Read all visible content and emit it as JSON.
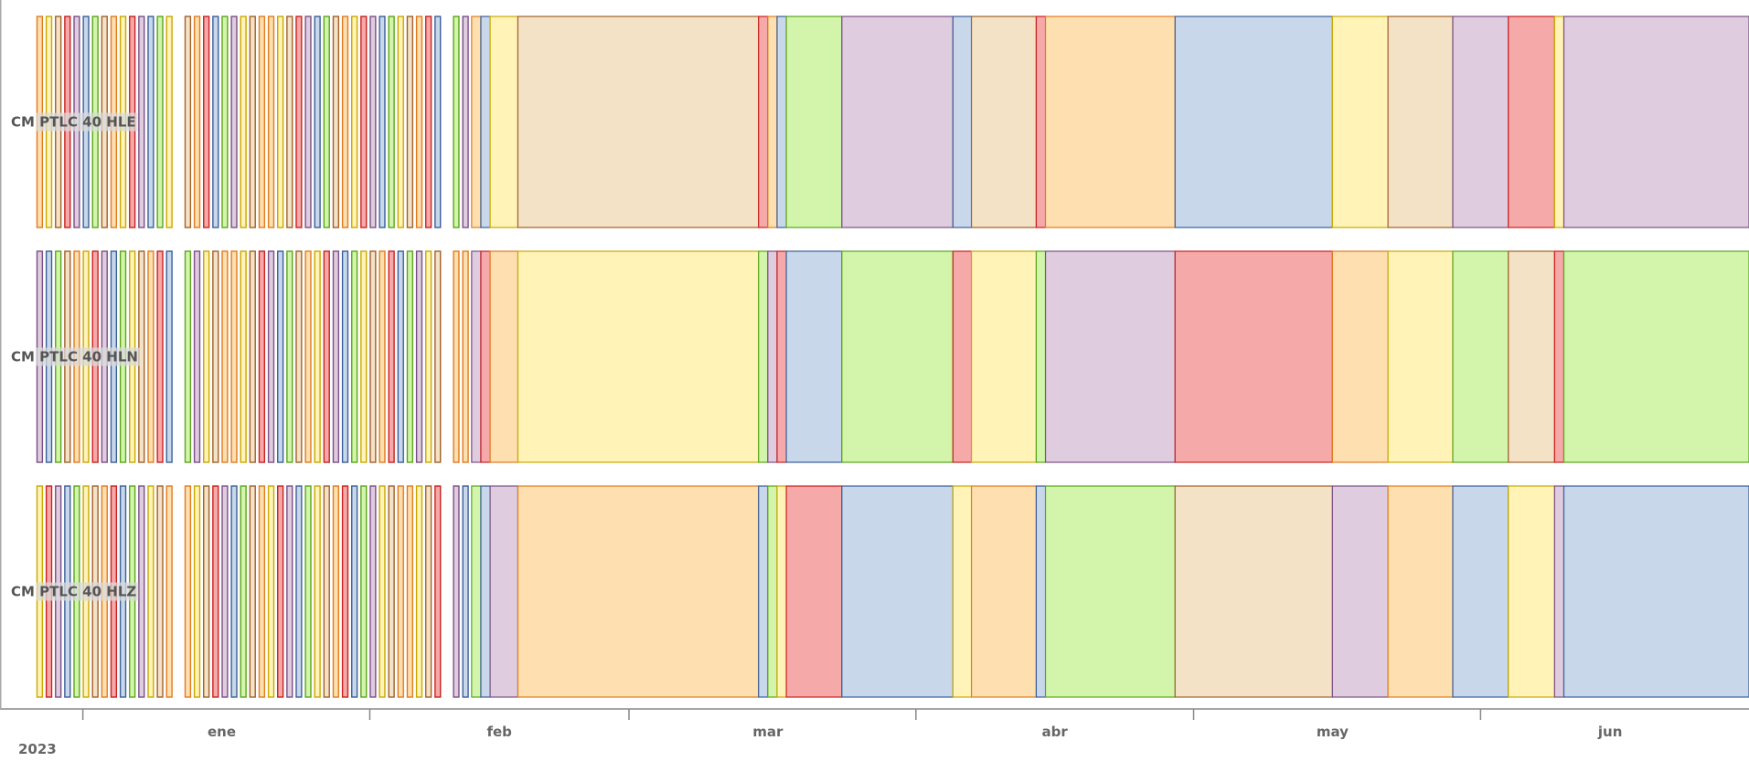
{
  "chart_data": {
    "type": "timeline",
    "title": "",
    "xlabel": "",
    "ylabel": "",
    "x_axis": {
      "type": "date",
      "range": [
        "2022-12-27",
        "2023-06-30"
      ],
      "tick_dates": [
        "2023-01-01",
        "2023-02-01",
        "2023-03-01",
        "2023-04-01",
        "2023-05-01",
        "2023-06-01",
        "2023-07-01"
      ],
      "month_labels": [
        {
          "label": "ene",
          "date": "2023-01-16"
        },
        {
          "label": "feb",
          "date": "2023-02-15"
        },
        {
          "label": "mar",
          "date": "2023-03-16"
        },
        {
          "label": "abr",
          "date": "2023-04-16"
        },
        {
          "label": "may",
          "date": "2023-05-16"
        },
        {
          "label": "jun",
          "date": "2023-06-15"
        }
      ],
      "year_label": "2023"
    },
    "grid": false,
    "legend": "none",
    "palette": {
      "orange": {
        "fill": "#fddfb0",
        "stroke": "#e07b1f"
      },
      "blue": {
        "fill": "#c8d8ea",
        "stroke": "#3a5f9a"
      },
      "yellow": {
        "fill": "#fff3b8",
        "stroke": "#c9a800"
      },
      "purple": {
        "fill": "#dfcddf",
        "stroke": "#7a4f85"
      },
      "red": {
        "fill": "#f6a9a9",
        "stroke": "#cc2020"
      },
      "green": {
        "fill": "#d3f5ab",
        "stroke": "#5aa51c"
      },
      "tan": {
        "fill": "#f4e2c6",
        "stroke": "#a0612b"
      }
    },
    "early_pattern": [
      "orange",
      "yellow",
      "tan",
      "red",
      "purple",
      "blue",
      "green",
      "tan",
      "orange",
      "yellow",
      "red",
      "purple",
      "blue",
      "green",
      "yellow",
      "tan",
      "orange",
      "red",
      "blue",
      "green",
      "purple",
      "yellow",
      "tan",
      "orange"
    ],
    "early_groups": [
      {
        "start": "2022-12-27",
        "end": "2023-01-10"
      },
      {
        "start": "2023-01-12",
        "end": "2023-01-22"
      },
      {
        "start": "2023-01-23",
        "end": "2023-02-08"
      },
      {
        "start": "2023-02-10",
        "end": "2023-02-11"
      }
    ],
    "series": [
      {
        "name": "CM PTLC 40 HLE",
        "early_offset": 0,
        "segments": [
          {
            "start": "2023-02-12",
            "end": "2023-02-13",
            "color": "orange"
          },
          {
            "start": "2023-02-13",
            "end": "2023-02-14",
            "color": "blue"
          },
          {
            "start": "2023-02-14",
            "end": "2023-02-17",
            "color": "yellow"
          },
          {
            "start": "2023-02-17",
            "end": "2023-03-15",
            "color": "tan"
          },
          {
            "start": "2023-03-15",
            "end": "2023-03-16",
            "color": "red"
          },
          {
            "start": "2023-03-16",
            "end": "2023-03-17",
            "color": "orange"
          },
          {
            "start": "2023-03-17",
            "end": "2023-03-18",
            "color": "blue"
          },
          {
            "start": "2023-03-18",
            "end": "2023-03-24",
            "color": "green"
          },
          {
            "start": "2023-03-24",
            "end": "2023-04-05",
            "color": "purple"
          },
          {
            "start": "2023-04-05",
            "end": "2023-04-07",
            "color": "blue"
          },
          {
            "start": "2023-04-07",
            "end": "2023-04-14",
            "color": "tan"
          },
          {
            "start": "2023-04-14",
            "end": "2023-04-15",
            "color": "red"
          },
          {
            "start": "2023-04-15",
            "end": "2023-04-29",
            "color": "orange"
          },
          {
            "start": "2023-04-29",
            "end": "2023-05-16",
            "color": "blue"
          },
          {
            "start": "2023-05-16",
            "end": "2023-05-22",
            "color": "yellow"
          },
          {
            "start": "2023-05-22",
            "end": "2023-05-29",
            "color": "tan"
          },
          {
            "start": "2023-05-29",
            "end": "2023-06-04",
            "color": "purple"
          },
          {
            "start": "2023-06-04",
            "end": "2023-06-09",
            "color": "red"
          },
          {
            "start": "2023-06-09",
            "end": "2023-06-10",
            "color": "yellow"
          },
          {
            "start": "2023-06-10",
            "end": "2023-06-30",
            "color": "purple"
          }
        ]
      },
      {
        "name": "CM PTLC 40 HLN",
        "early_offset": 4,
        "segments": [
          {
            "start": "2023-02-12",
            "end": "2023-02-13",
            "color": "purple"
          },
          {
            "start": "2023-02-13",
            "end": "2023-02-14",
            "color": "red"
          },
          {
            "start": "2023-02-14",
            "end": "2023-02-17",
            "color": "orange"
          },
          {
            "start": "2023-02-17",
            "end": "2023-03-15",
            "color": "yellow"
          },
          {
            "start": "2023-03-15",
            "end": "2023-03-16",
            "color": "green"
          },
          {
            "start": "2023-03-16",
            "end": "2023-03-17",
            "color": "purple"
          },
          {
            "start": "2023-03-17",
            "end": "2023-03-18",
            "color": "red"
          },
          {
            "start": "2023-03-18",
            "end": "2023-03-24",
            "color": "blue"
          },
          {
            "start": "2023-03-24",
            "end": "2023-04-05",
            "color": "green"
          },
          {
            "start": "2023-04-05",
            "end": "2023-04-07",
            "color": "red"
          },
          {
            "start": "2023-04-07",
            "end": "2023-04-14",
            "color": "yellow"
          },
          {
            "start": "2023-04-14",
            "end": "2023-04-15",
            "color": "green"
          },
          {
            "start": "2023-04-15",
            "end": "2023-04-29",
            "color": "purple"
          },
          {
            "start": "2023-04-29",
            "end": "2023-05-16",
            "color": "red"
          },
          {
            "start": "2023-05-16",
            "end": "2023-05-22",
            "color": "orange"
          },
          {
            "start": "2023-05-22",
            "end": "2023-05-29",
            "color": "yellow"
          },
          {
            "start": "2023-05-29",
            "end": "2023-06-04",
            "color": "green"
          },
          {
            "start": "2023-06-04",
            "end": "2023-06-09",
            "color": "tan"
          },
          {
            "start": "2023-06-09",
            "end": "2023-06-10",
            "color": "red"
          },
          {
            "start": "2023-06-10",
            "end": "2023-06-30",
            "color": "green"
          }
        ]
      },
      {
        "name": "CM PTLC 40 HLZ",
        "early_offset": 9,
        "segments": [
          {
            "start": "2023-02-12",
            "end": "2023-02-13",
            "color": "green"
          },
          {
            "start": "2023-02-13",
            "end": "2023-02-14",
            "color": "blue"
          },
          {
            "start": "2023-02-14",
            "end": "2023-02-17",
            "color": "purple"
          },
          {
            "start": "2023-02-17",
            "end": "2023-03-15",
            "color": "orange"
          },
          {
            "start": "2023-03-15",
            "end": "2023-03-16",
            "color": "blue"
          },
          {
            "start": "2023-03-16",
            "end": "2023-03-17",
            "color": "green"
          },
          {
            "start": "2023-03-17",
            "end": "2023-03-18",
            "color": "yellow"
          },
          {
            "start": "2023-03-18",
            "end": "2023-03-24",
            "color": "red"
          },
          {
            "start": "2023-03-24",
            "end": "2023-04-05",
            "color": "blue"
          },
          {
            "start": "2023-04-05",
            "end": "2023-04-07",
            "color": "yellow"
          },
          {
            "start": "2023-04-07",
            "end": "2023-04-14",
            "color": "orange"
          },
          {
            "start": "2023-04-14",
            "end": "2023-04-15",
            "color": "blue"
          },
          {
            "start": "2023-04-15",
            "end": "2023-04-29",
            "color": "green"
          },
          {
            "start": "2023-04-29",
            "end": "2023-05-16",
            "color": "tan"
          },
          {
            "start": "2023-05-16",
            "end": "2023-05-22",
            "color": "purple"
          },
          {
            "start": "2023-05-22",
            "end": "2023-05-29",
            "color": "orange"
          },
          {
            "start": "2023-05-29",
            "end": "2023-06-04",
            "color": "blue"
          },
          {
            "start": "2023-06-04",
            "end": "2023-06-09",
            "color": "yellow"
          },
          {
            "start": "2023-06-09",
            "end": "2023-06-10",
            "color": "purple"
          },
          {
            "start": "2023-06-10",
            "end": "2023-06-30",
            "color": "blue"
          }
        ]
      }
    ]
  }
}
